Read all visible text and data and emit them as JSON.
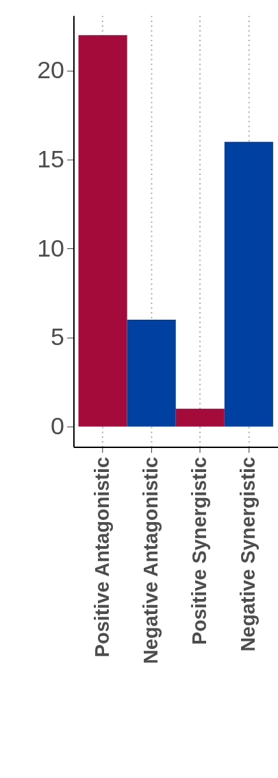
{
  "chart_data": {
    "type": "bar",
    "categories": [
      "Positive Antagonistic",
      "Negative Antagonistic",
      "Positive Synergistic",
      "Negative Synergistic"
    ],
    "values": [
      22,
      6,
      1,
      16
    ],
    "colors": [
      "#a50b3a",
      "#0040a0",
      "#a50b3a",
      "#0040a0"
    ],
    "ylim": [
      -1.15,
      23.1
    ],
    "yticks": [
      0,
      5,
      10,
      15,
      20
    ],
    "grid": "x"
  }
}
